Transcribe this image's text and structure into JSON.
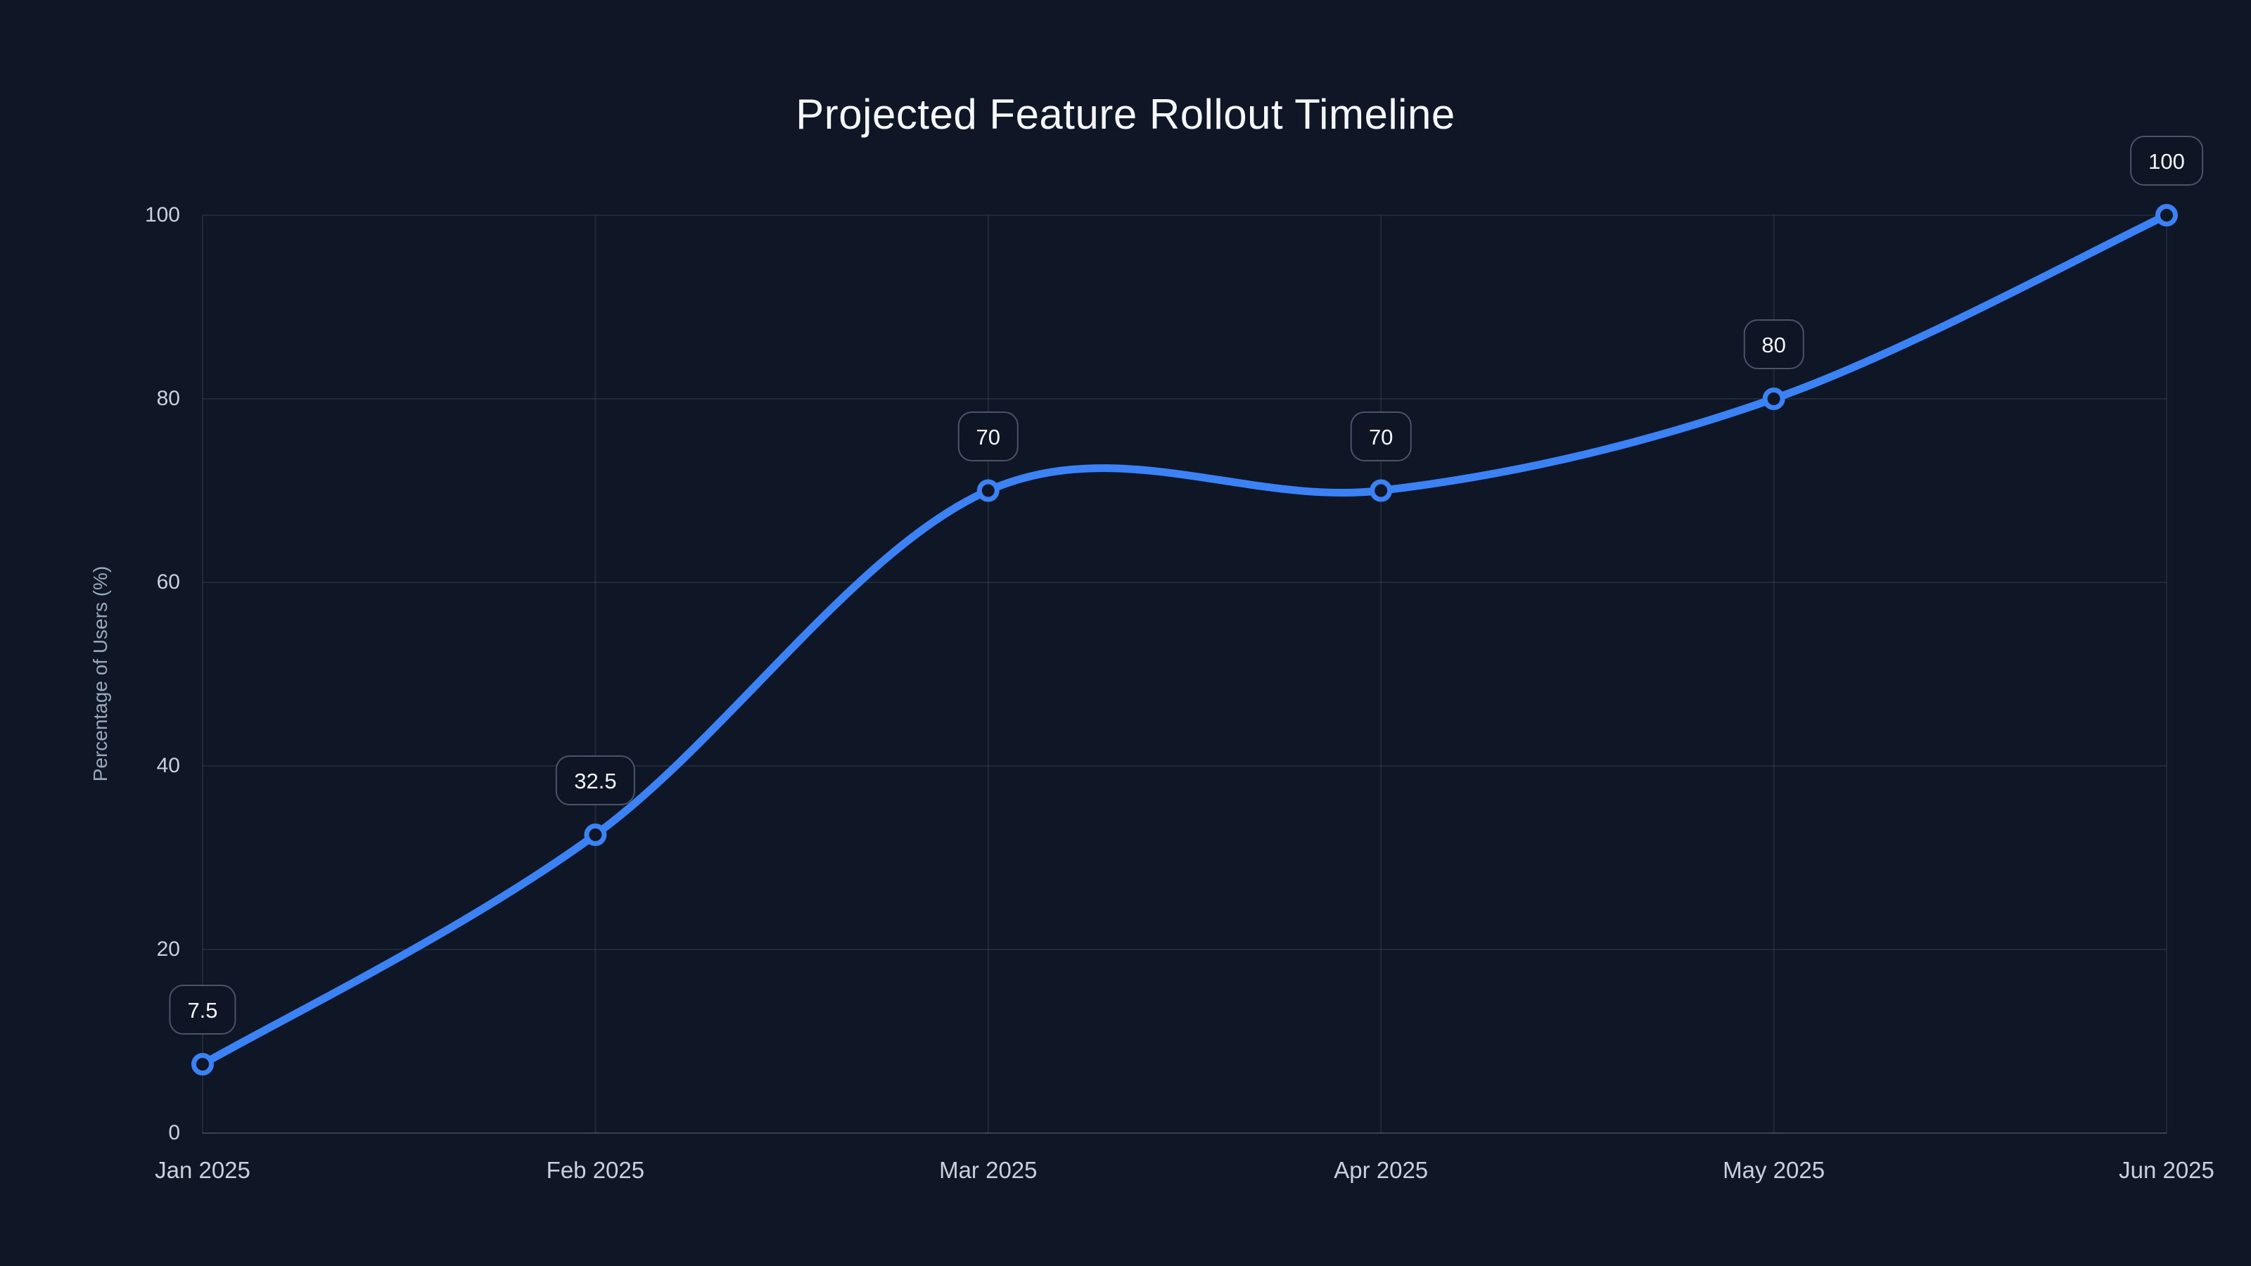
{
  "chart_data": {
    "type": "line",
    "title": "Projected Feature Rollout Timeline",
    "ylabel": "Percentage of Users (%)",
    "xlabel": "",
    "categories": [
      "Jan 2025",
      "Feb 2025",
      "Mar 2025",
      "Apr 2025",
      "May 2025",
      "Jun 2025"
    ],
    "series": [
      {
        "name": "Percentage of Users",
        "values": [
          7.5,
          32.5,
          70,
          70,
          80,
          100
        ]
      }
    ],
    "point_labels": [
      "7.5",
      "32.5",
      "70",
      "70",
      "80",
      "100"
    ],
    "ylim": [
      0,
      100
    ],
    "yticks": [
      0,
      20,
      40,
      60,
      80,
      100
    ],
    "grid": true,
    "legend": false,
    "curve": "catmull-rom"
  },
  "colors": {
    "background": "#0f1726",
    "accent": "#3b82f6",
    "grid": "rgba(148,163,184,0.13)",
    "axis_line": "rgba(148,163,184,0.32)",
    "tick_label": "#c7d0dd",
    "axis_title": "#9aa8bc",
    "pill_background": "#0e1524",
    "pill_border": "#49536a",
    "pill_text": "#f3f6fa",
    "title_text": "#f4f7fb",
    "marker_fill": "#0f1726"
  }
}
